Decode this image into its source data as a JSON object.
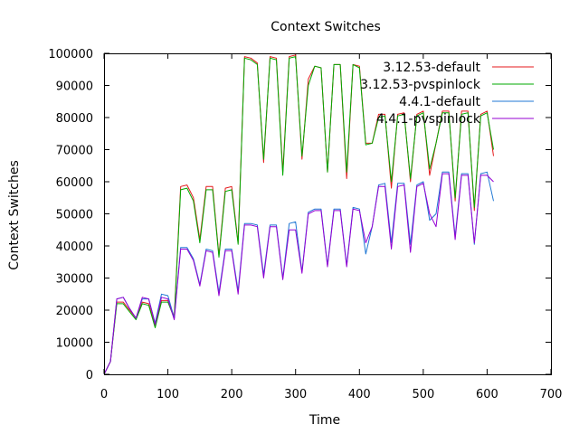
{
  "chart_data": {
    "type": "line",
    "title": "Context Switches",
    "xlabel": "Time",
    "ylabel": "Context Switches",
    "xlim": [
      0,
      700
    ],
    "ylim": [
      0,
      100000
    ],
    "x_ticks": [
      "0",
      "100",
      "200",
      "300",
      "400",
      "500",
      "600",
      "700"
    ],
    "y_ticks": [
      "0",
      "10000",
      "20000",
      "30000",
      "40000",
      "50000",
      "60000",
      "70000",
      "80000",
      "90000",
      "100000"
    ],
    "grid": false,
    "legend": "top-right",
    "series": [
      {
        "name": "3.12.53-default",
        "color": "#e41a1c",
        "x": [
          0,
          10,
          20,
          30,
          40,
          50,
          60,
          70,
          80,
          90,
          100,
          110,
          120,
          130,
          140,
          150,
          160,
          170,
          180,
          190,
          200,
          210,
          220,
          230,
          240,
          250,
          260,
          270,
          280,
          290,
          300,
          310,
          320,
          330,
          340,
          350,
          360,
          370,
          380,
          390,
          400,
          410,
          420,
          430,
          440,
          450,
          460,
          470,
          480,
          490,
          500,
          510,
          520,
          530,
          540,
          550,
          560,
          570,
          580,
          590,
          600,
          610
        ],
        "values": [
          0,
          4000,
          22500,
          22500,
          20000,
          17500,
          22500,
          22000,
          15000,
          23000,
          23000,
          18000,
          58500,
          59000,
          55000,
          42000,
          58500,
          58500,
          37000,
          58000,
          58500,
          41000,
          99000,
          98500,
          97000,
          66000,
          99000,
          98500,
          63000,
          99000,
          99500,
          67000,
          92000,
          96000,
          95500,
          63000,
          96500,
          96500,
          61000,
          96500,
          96000,
          72000,
          72000,
          81000,
          81000,
          58000,
          81000,
          81500,
          60000,
          81000,
          82000,
          62000,
          72000,
          82000,
          82000,
          54000,
          82000,
          82000,
          51000,
          81000,
          82000,
          68000
        ]
      },
      {
        "name": "3.12.53-pvspinlock",
        "color": "#00aa00",
        "x": [
          0,
          10,
          20,
          30,
          40,
          50,
          60,
          70,
          80,
          90,
          100,
          110,
          120,
          130,
          140,
          150,
          160,
          170,
          180,
          190,
          200,
          210,
          220,
          230,
          240,
          250,
          260,
          270,
          280,
          290,
          300,
          310,
          320,
          330,
          340,
          350,
          360,
          370,
          380,
          390,
          400,
          410,
          420,
          430,
          440,
          450,
          460,
          470,
          480,
          490,
          500,
          510,
          520,
          530,
          540,
          550,
          560,
          570,
          580,
          590,
          600,
          610
        ],
        "values": [
          0,
          4000,
          22000,
          22000,
          19500,
          17000,
          22000,
          21500,
          14500,
          22500,
          22500,
          17500,
          57500,
          58000,
          54000,
          41000,
          57500,
          57500,
          36500,
          57000,
          57500,
          40500,
          98500,
          98000,
          96500,
          67000,
          98500,
          98000,
          62000,
          98500,
          99000,
          68000,
          90000,
          96000,
          95500,
          63000,
          96500,
          96500,
          63000,
          96500,
          95500,
          71500,
          72000,
          80000,
          80500,
          60000,
          80500,
          81000,
          61000,
          80500,
          81500,
          64000,
          72000,
          81500,
          81500,
          55000,
          81000,
          81500,
          52000,
          80500,
          81500,
          70000
        ]
      },
      {
        "name": "4.4.1-default",
        "color": "#1f77d4",
        "x": [
          0,
          10,
          20,
          30,
          40,
          50,
          60,
          70,
          80,
          90,
          100,
          110,
          120,
          130,
          140,
          150,
          160,
          170,
          180,
          190,
          200,
          210,
          220,
          230,
          240,
          250,
          260,
          270,
          280,
          290,
          300,
          310,
          320,
          330,
          340,
          350,
          360,
          370,
          380,
          390,
          400,
          410,
          420,
          430,
          440,
          450,
          460,
          470,
          480,
          490,
          500,
          510,
          520,
          530,
          540,
          550,
          560,
          570,
          580,
          590,
          600,
          610
        ],
        "values": [
          0,
          4000,
          23500,
          24000,
          20500,
          17500,
          23500,
          23500,
          16000,
          25000,
          24500,
          17500,
          39500,
          39500,
          36000,
          28000,
          39000,
          38500,
          25500,
          39000,
          39000,
          26000,
          47000,
          47000,
          46500,
          31000,
          46500,
          46500,
          30000,
          47000,
          47500,
          32000,
          50500,
          51500,
          51500,
          34000,
          51500,
          51500,
          34000,
          52000,
          51500,
          37500,
          46000,
          59000,
          59500,
          41000,
          59500,
          59500,
          40500,
          59000,
          60000,
          48000,
          50000,
          63000,
          63000,
          43000,
          62500,
          62500,
          40500,
          62500,
          63000,
          54000
        ]
      },
      {
        "name": "4.4.1-pvspinlock",
        "color": "#9400d3",
        "x": [
          0,
          10,
          20,
          30,
          40,
          50,
          60,
          70,
          80,
          90,
          100,
          110,
          120,
          130,
          140,
          150,
          160,
          170,
          180,
          190,
          200,
          210,
          220,
          230,
          240,
          250,
          260,
          270,
          280,
          290,
          300,
          310,
          320,
          330,
          340,
          350,
          360,
          370,
          380,
          390,
          400,
          410,
          420,
          430,
          440,
          450,
          460,
          470,
          480,
          490,
          500,
          510,
          520,
          530,
          540,
          550,
          560,
          570,
          580,
          590,
          600,
          610
        ],
        "values": [
          0,
          4000,
          23500,
          24000,
          20500,
          17500,
          24000,
          23500,
          15500,
          24000,
          23500,
          17000,
          39000,
          39000,
          35500,
          27500,
          38500,
          38000,
          24500,
          38500,
          38500,
          25000,
          46500,
          46500,
          46000,
          30000,
          46000,
          46000,
          29500,
          45000,
          45000,
          31500,
          50000,
          51000,
          51000,
          33500,
          51000,
          51000,
          33500,
          51500,
          51000,
          41000,
          46000,
          58500,
          58500,
          39000,
          58500,
          59000,
          38000,
          58500,
          59500,
          50000,
          46000,
          62500,
          62500,
          42000,
          62000,
          62000,
          41000,
          62000,
          62000,
          60000
        ]
      }
    ]
  }
}
